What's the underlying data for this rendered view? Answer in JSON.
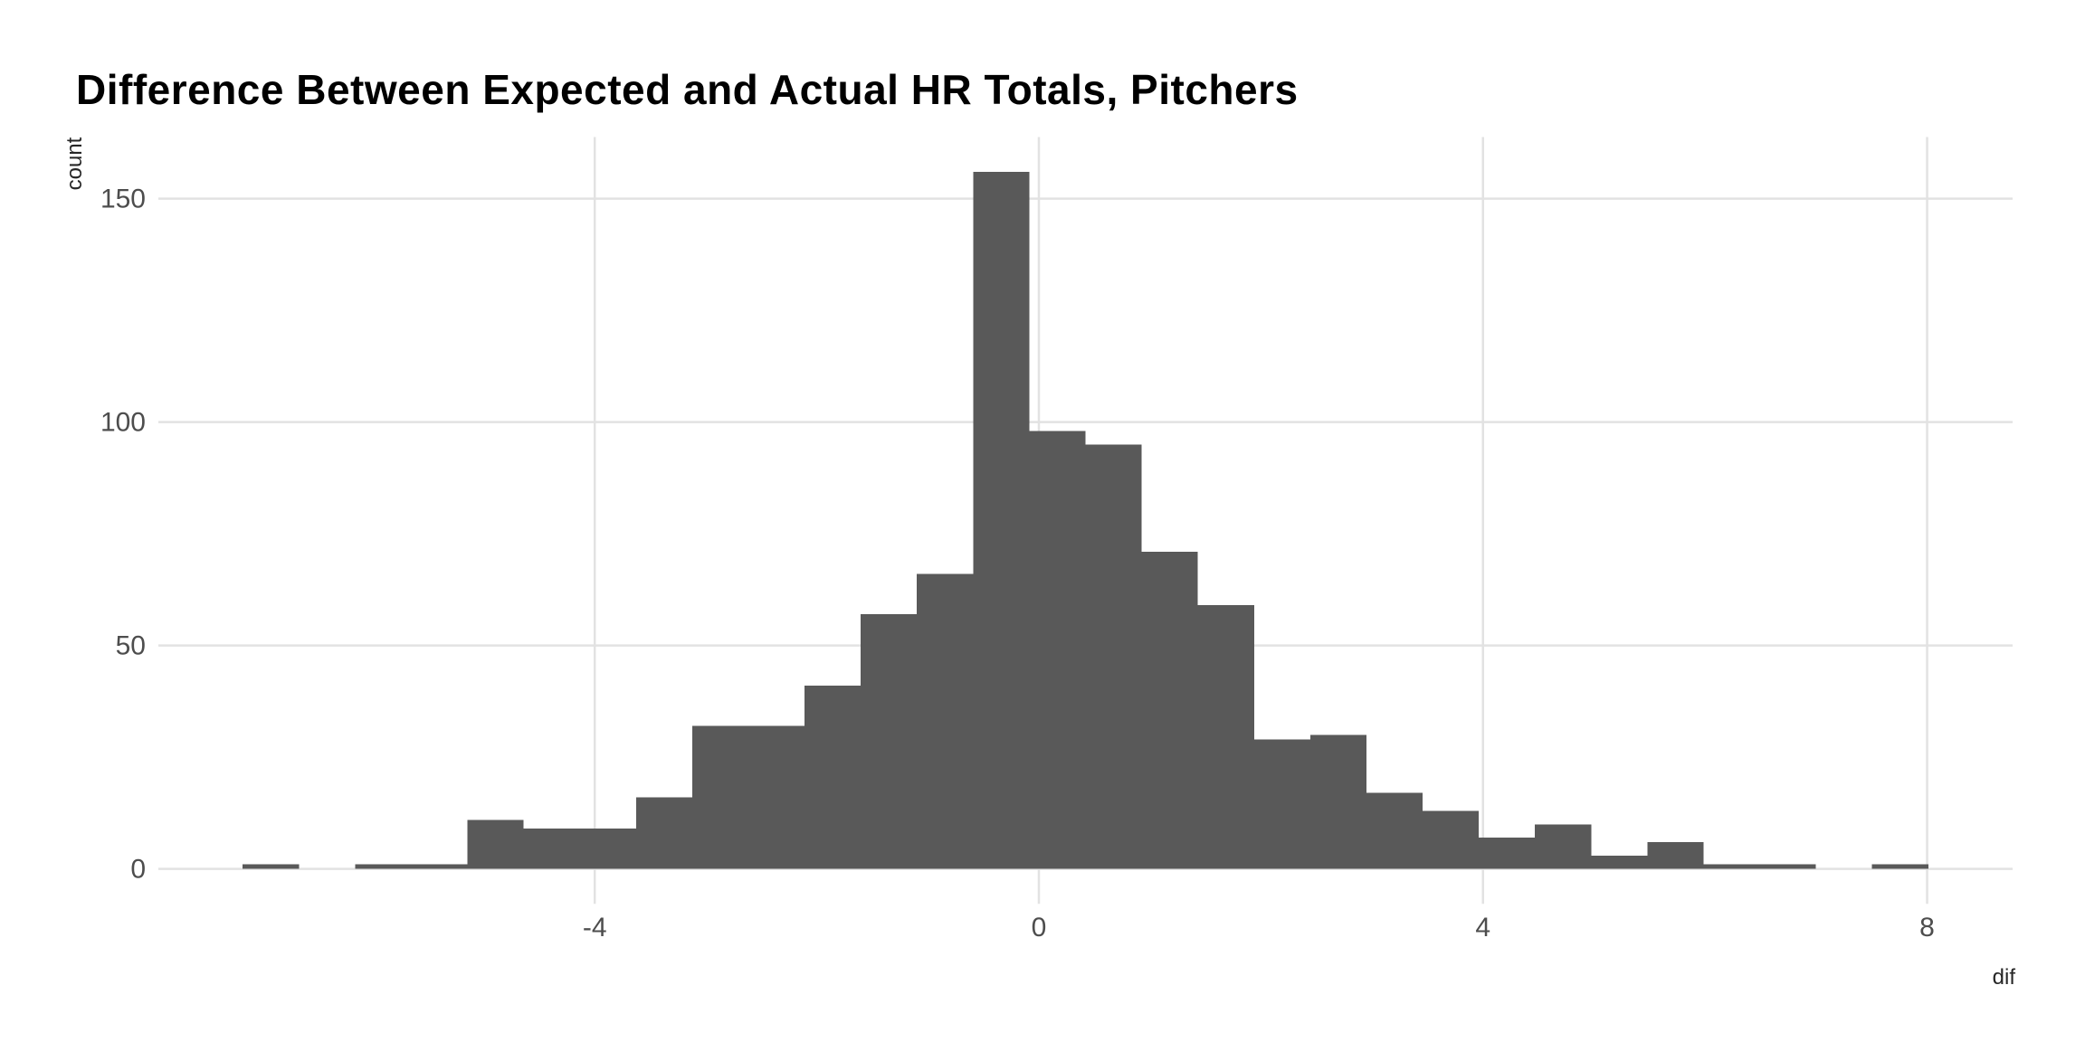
{
  "chart": {
    "title": "Difference Between Expected and Actual HR Totals, Pitchers",
    "xlabel": "dif",
    "ylabel": "count"
  },
  "chart_data": {
    "type": "bar",
    "subtype": "histogram",
    "title": "Difference Between Expected and Actual HR Totals, Pitchers",
    "xlabel": "dif",
    "ylabel": "count",
    "bin_start": -7.17,
    "bin_width": 0.506,
    "counts": [
      1,
      0,
      1,
      1,
      11,
      9,
      9,
      16,
      32,
      32,
      41,
      57,
      66,
      156,
      98,
      95,
      71,
      59,
      29,
      30,
      17,
      13,
      7,
      10,
      3,
      6,
      1,
      1,
      0,
      1
    ],
    "x_ticks": [
      -4,
      0,
      4,
      8
    ],
    "y_ticks": [
      0,
      50,
      100,
      150
    ],
    "x_domain": [
      -7.93,
      8.77
    ],
    "y_domain": [
      -7.8,
      163.8
    ],
    "bar_color": "#595959",
    "gridline_color": "#e2e2e2",
    "tick_label_color": "#4d4d4d",
    "grid": "major-only",
    "legend": "none"
  }
}
